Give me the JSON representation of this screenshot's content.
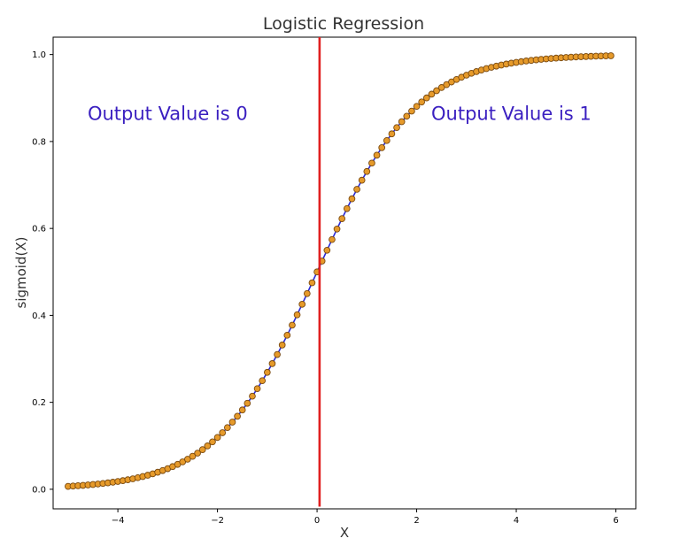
{
  "chart_data": {
    "type": "scatter",
    "title": "Logistic Regression",
    "xlabel": "X",
    "ylabel": "sigmoid(X)",
    "xlim": [
      -5.3,
      6.4
    ],
    "ylim": [
      -0.045,
      1.04
    ],
    "xticks": [
      -4,
      -2,
      0,
      2,
      4,
      6
    ],
    "yticks": [
      0.0,
      0.2,
      0.4,
      0.6,
      0.8,
      1.0
    ],
    "xtick_labels": [
      "−4",
      "−2",
      "0",
      "2",
      "4",
      "6"
    ],
    "ytick_labels": [
      "0.0",
      "0.2",
      "0.4",
      "0.6",
      "0.8",
      "1.0"
    ],
    "grid": false,
    "series": [
      {
        "kind": "scatter+line",
        "function": "sigmoid",
        "x_start": -5.0,
        "x_end": 5.9,
        "x_step": 0.1,
        "marker_color": "#e69a2a",
        "marker_edge_color": "#7a4a10",
        "line_color": "#2a2ad8"
      }
    ],
    "vline": {
      "x": 0.05,
      "color": "#e02020",
      "y_range": [
        -0.04,
        1.04
      ]
    },
    "annotations": [
      {
        "text": "Output Value is 0",
        "x": -3.0,
        "y": 0.85,
        "color": "#3a1fc0"
      },
      {
        "text": "Output Value is 1",
        "x": 3.9,
        "y": 0.85,
        "color": "#3a1fc0"
      }
    ]
  }
}
